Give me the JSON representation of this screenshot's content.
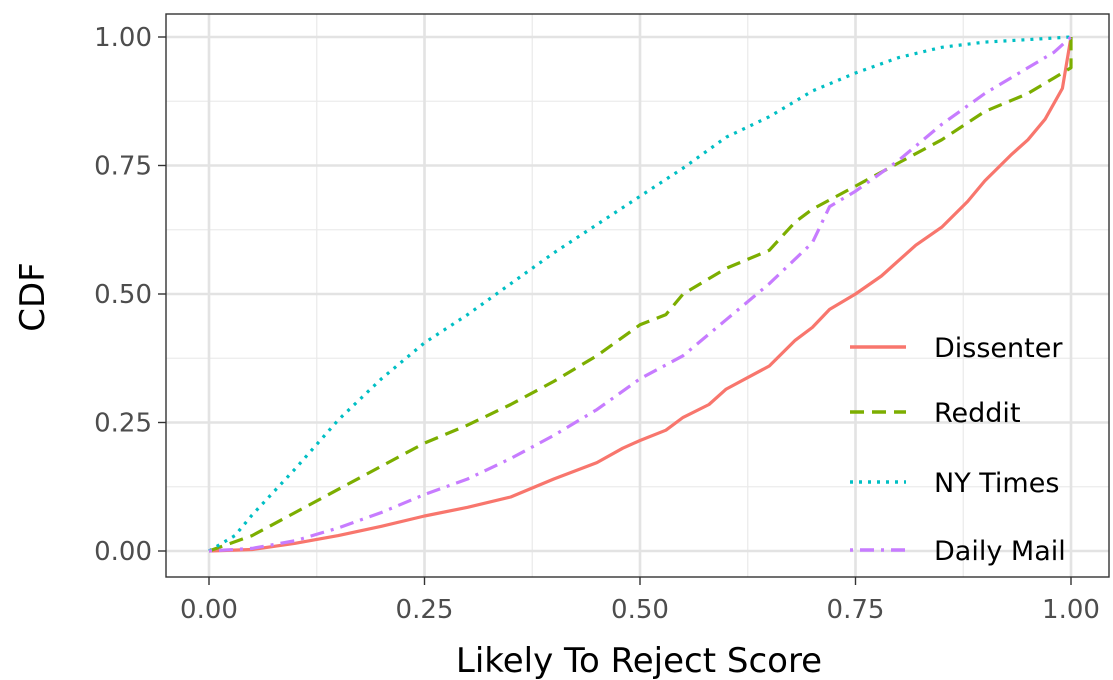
{
  "chart_data": {
    "type": "line",
    "title": "",
    "xlabel": "Likely To Reject Score",
    "ylabel": "CDF",
    "xlim": [
      0,
      1
    ],
    "ylim": [
      0,
      1
    ],
    "x_ticks": [
      "0.00",
      "0.25",
      "0.50",
      "0.75",
      "1.00"
    ],
    "y_ticks": [
      "0.00",
      "0.25",
      "0.50",
      "0.75",
      "1.00"
    ],
    "grid": true,
    "legend_position": "bottom-right",
    "series": [
      {
        "name": "Dissenter",
        "color": "#f8766d",
        "dash": "solid",
        "points": [
          [
            0,
            0
          ],
          [
            0.05,
            0.003
          ],
          [
            0.1,
            0.015
          ],
          [
            0.15,
            0.03
          ],
          [
            0.2,
            0.048
          ],
          [
            0.25,
            0.068
          ],
          [
            0.3,
            0.085
          ],
          [
            0.35,
            0.105
          ],
          [
            0.4,
            0.14
          ],
          [
            0.45,
            0.172
          ],
          [
            0.48,
            0.2
          ],
          [
            0.5,
            0.215
          ],
          [
            0.53,
            0.235
          ],
          [
            0.55,
            0.26
          ],
          [
            0.58,
            0.285
          ],
          [
            0.6,
            0.315
          ],
          [
            0.65,
            0.36
          ],
          [
            0.68,
            0.41
          ],
          [
            0.7,
            0.435
          ],
          [
            0.72,
            0.47
          ],
          [
            0.75,
            0.5
          ],
          [
            0.78,
            0.535
          ],
          [
            0.8,
            0.565
          ],
          [
            0.82,
            0.595
          ],
          [
            0.85,
            0.63
          ],
          [
            0.88,
            0.68
          ],
          [
            0.9,
            0.72
          ],
          [
            0.93,
            0.77
          ],
          [
            0.95,
            0.8
          ],
          [
            0.97,
            0.84
          ],
          [
            0.99,
            0.9
          ],
          [
            1.0,
            1.0
          ]
        ]
      },
      {
        "name": "Reddit",
        "color": "#7cae00",
        "dash": "dashed",
        "points": [
          [
            0,
            0
          ],
          [
            0.05,
            0.03
          ],
          [
            0.1,
            0.075
          ],
          [
            0.15,
            0.12
          ],
          [
            0.2,
            0.165
          ],
          [
            0.25,
            0.21
          ],
          [
            0.3,
            0.245
          ],
          [
            0.35,
            0.285
          ],
          [
            0.4,
            0.33
          ],
          [
            0.45,
            0.38
          ],
          [
            0.5,
            0.44
          ],
          [
            0.53,
            0.46
          ],
          [
            0.55,
            0.5
          ],
          [
            0.6,
            0.55
          ],
          [
            0.65,
            0.585
          ],
          [
            0.68,
            0.64
          ],
          [
            0.7,
            0.665
          ],
          [
            0.75,
            0.71
          ],
          [
            0.8,
            0.755
          ],
          [
            0.85,
            0.8
          ],
          [
            0.9,
            0.855
          ],
          [
            0.95,
            0.89
          ],
          [
            0.98,
            0.92
          ],
          [
            1.0,
            0.94
          ],
          [
            1.0,
            1.0
          ]
        ]
      },
      {
        "name": "NY Times",
        "color": "#00bfc4",
        "dash": "dotted",
        "points": [
          [
            0,
            0
          ],
          [
            0.03,
            0.03
          ],
          [
            0.05,
            0.07
          ],
          [
            0.1,
            0.16
          ],
          [
            0.15,
            0.255
          ],
          [
            0.2,
            0.335
          ],
          [
            0.25,
            0.405
          ],
          [
            0.3,
            0.46
          ],
          [
            0.35,
            0.52
          ],
          [
            0.4,
            0.58
          ],
          [
            0.45,
            0.635
          ],
          [
            0.5,
            0.69
          ],
          [
            0.55,
            0.745
          ],
          [
            0.6,
            0.805
          ],
          [
            0.65,
            0.845
          ],
          [
            0.7,
            0.895
          ],
          [
            0.75,
            0.93
          ],
          [
            0.8,
            0.96
          ],
          [
            0.85,
            0.98
          ],
          [
            0.9,
            0.99
          ],
          [
            0.95,
            0.995
          ],
          [
            1.0,
            1.0
          ]
        ]
      },
      {
        "name": "Daily Mail",
        "color": "#c77cff",
        "dash": "dotdash",
        "points": [
          [
            0,
            0
          ],
          [
            0.05,
            0.005
          ],
          [
            0.1,
            0.02
          ],
          [
            0.15,
            0.045
          ],
          [
            0.2,
            0.075
          ],
          [
            0.25,
            0.11
          ],
          [
            0.3,
            0.14
          ],
          [
            0.35,
            0.18
          ],
          [
            0.4,
            0.225
          ],
          [
            0.45,
            0.275
          ],
          [
            0.5,
            0.335
          ],
          [
            0.55,
            0.38
          ],
          [
            0.6,
            0.45
          ],
          [
            0.65,
            0.52
          ],
          [
            0.7,
            0.6
          ],
          [
            0.72,
            0.67
          ],
          [
            0.75,
            0.7
          ],
          [
            0.8,
            0.76
          ],
          [
            0.85,
            0.83
          ],
          [
            0.9,
            0.89
          ],
          [
            0.95,
            0.94
          ],
          [
            0.98,
            0.97
          ],
          [
            1.0,
            1.0
          ]
        ]
      }
    ]
  }
}
